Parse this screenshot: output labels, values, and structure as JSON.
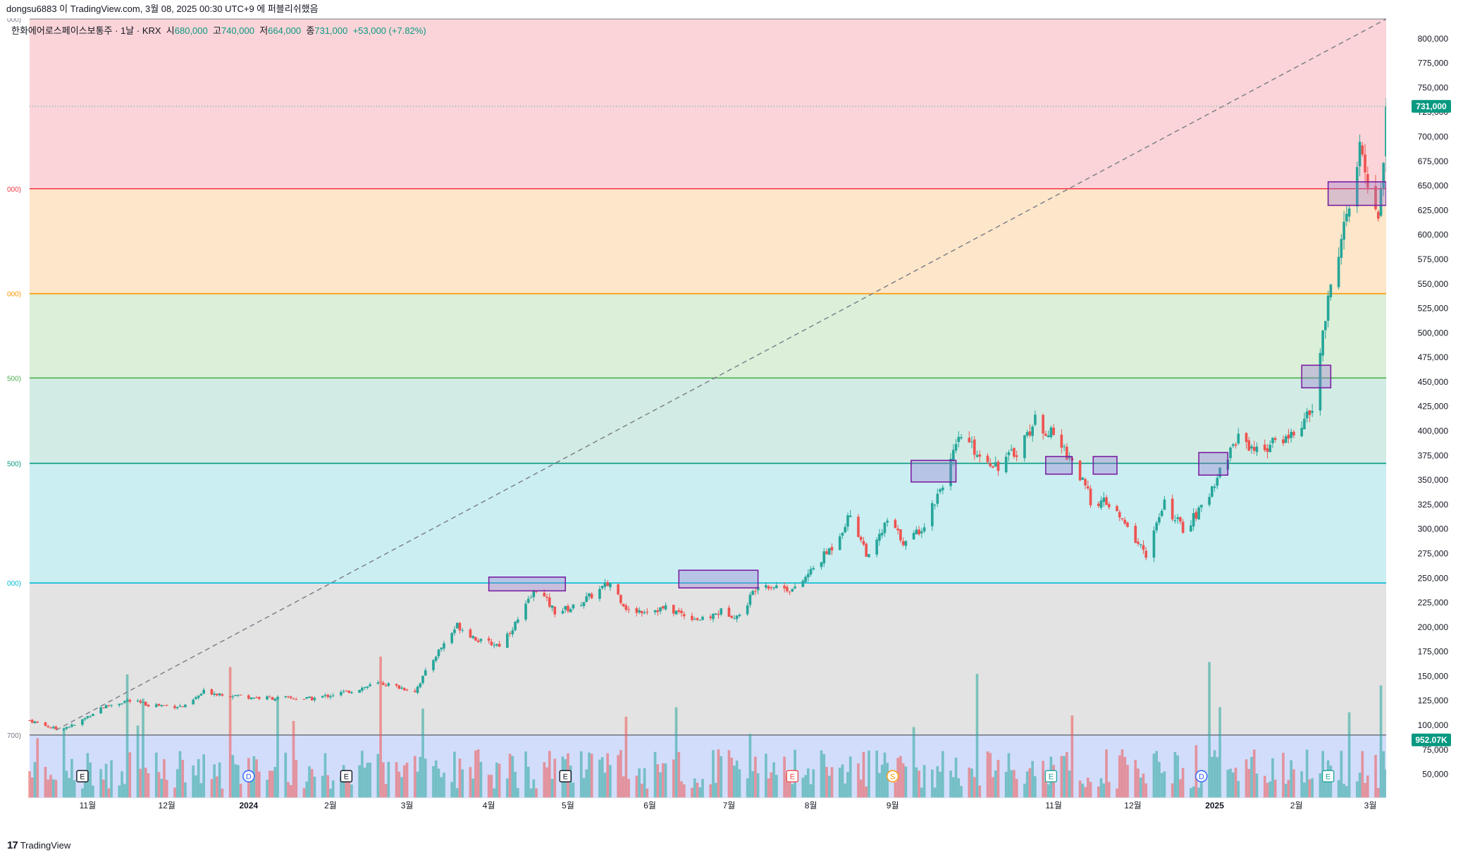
{
  "header": {
    "published_by": "dongsu6883 이 TradingView.com, 3월 08, 2025 00:30 UTC+9 에 퍼블리쉬했음"
  },
  "legend": {
    "symbol": "한화에어로스페이스보통주 · 1날 · KRX",
    "open_label": "시",
    "open_value": "680,000",
    "high_label": "고",
    "high_value": "740,000",
    "low_label": "저",
    "low_value": "664,000",
    "close_label": "종",
    "close_value": "731,000",
    "change": "+53,000 (+7.82%)"
  },
  "footer": {
    "brand": "TradingView"
  },
  "colors": {
    "up": "#26a69a",
    "down": "#ef5350",
    "up_text": "#089981",
    "box_stroke": "#7b1fa2",
    "box_fill": "#9575cd"
  },
  "chart_data": {
    "type": "candlestick",
    "y_axis": {
      "range": [
        26000,
        820000
      ],
      "ticks": [
        "800,000",
        "775,000",
        "750,000",
        "725,000",
        "700,000",
        "675,000",
        "650,000",
        "625,000",
        "600,000",
        "575,000",
        "550,000",
        "525,000",
        "500,000",
        "475,000",
        "450,000",
        "425,000",
        "400,000",
        "375,000",
        "350,000",
        "325,000",
        "300,000",
        "275,000",
        "250,000",
        "225,000",
        "200,000",
        "175,000",
        "150,000",
        "125,000",
        "100,000",
        "75,000",
        "50,000"
      ],
      "tick_values": [
        800000,
        775000,
        750000,
        725000,
        700000,
        675000,
        650000,
        625000,
        600000,
        575000,
        550000,
        525000,
        500000,
        475000,
        450000,
        425000,
        400000,
        375000,
        350000,
        325000,
        300000,
        275000,
        250000,
        225000,
        200000,
        175000,
        150000,
        125000,
        100000,
        75000,
        50000
      ],
      "price_badge": "731,000",
      "price_badge_value": 731000,
      "volume_badge": "952.07K",
      "volume_badge_value": 85000
    },
    "x_axis": {
      "labels": [
        "11월",
        "12월",
        "2024",
        "2월",
        "3월",
        "4월",
        "5월",
        "6월",
        "7월",
        "8월",
        "9월",
        "11월",
        "12월",
        "2025",
        "2월",
        "3월"
      ],
      "label_dates": [
        "2023-11-01",
        "2023-12-01",
        "2024-01-01",
        "2024-02-01",
        "2024-03-01",
        "2024-04-01",
        "2024-05-01",
        "2024-06-01",
        "2024-07-01",
        "2024-08-01",
        "2024-09-01",
        "2024-11-01",
        "2024-12-01",
        "2025-01-01",
        "2025-02-01",
        "2025-03-01"
      ],
      "start_date": "2023-10-10",
      "end_date": "2025-03-07"
    },
    "fib_levels": [
      {
        "label": "000)",
        "price": 820000,
        "color": "#787b86"
      },
      {
        "label": "000)",
        "price": 647000,
        "color": "#f23645"
      },
      {
        "label": "000)",
        "price": 540000,
        "color": "#ff9800"
      },
      {
        "label": "500)",
        "price": 454000,
        "color": "#4caf50"
      },
      {
        "label": "500)",
        "price": 367000,
        "color": "#089981"
      },
      {
        "label": "000)",
        "price": 245000,
        "color": "#00bcd4"
      },
      {
        "label": "700)",
        "price": 90000,
        "color": "#787b86"
      }
    ],
    "zone_fills": [
      "#fad4d8",
      "#fde6c9",
      "#dcefd9",
      "#d2ece5",
      "#cbeef2",
      "#e3e3e3",
      "#d2ddfb"
    ],
    "trendline": {
      "start": [
        "2023-10-20",
        95000
      ],
      "end": [
        "2025-03-07",
        820000
      ]
    },
    "event_markers": [
      {
        "date": "2023-10-30",
        "letter": "E",
        "kind": "earnings"
      },
      {
        "date": "2024-01-01",
        "letter": "D",
        "kind": "dividend"
      },
      {
        "date": "2024-02-07",
        "letter": "E",
        "kind": "earnings"
      },
      {
        "date": "2024-04-30",
        "letter": "E",
        "kind": "earnings"
      },
      {
        "date": "2024-07-25",
        "letter": "E",
        "kind": "earnings-neg"
      },
      {
        "date": "2024-09-01",
        "letter": "S",
        "kind": "split"
      },
      {
        "date": "2024-10-31",
        "letter": "E",
        "kind": "earnings"
      },
      {
        "date": "2024-12-27",
        "letter": "D",
        "kind": "dividend"
      },
      {
        "date": "2025-02-13",
        "letter": "E",
        "kind": "earnings"
      }
    ],
    "boxes": [
      {
        "from": "2024-04-01",
        "to": "2024-04-30",
        "low": 237000,
        "high": 251000
      },
      {
        "from": "2024-06-12",
        "to": "2024-07-12",
        "low": 240000,
        "high": 258000
      },
      {
        "from": "2024-09-08",
        "to": "2024-09-25",
        "low": 348000,
        "high": 370000
      },
      {
        "from": "2024-10-29",
        "to": "2024-11-08",
        "low": 356000,
        "high": 374000
      },
      {
        "from": "2024-11-16",
        "to": "2024-11-25",
        "low": 356000,
        "high": 374000
      },
      {
        "from": "2024-12-26",
        "to": "2025-01-06",
        "low": 355000,
        "high": 378000
      },
      {
        "from": "2025-02-03",
        "to": "2025-02-14",
        "low": 444000,
        "high": 467000
      },
      {
        "from": "2025-02-13",
        "to": "2025-03-07",
        "low": 630000,
        "high": 654000
      }
    ],
    "price_anchors": [
      [
        "2023-10-10",
        105000
      ],
      [
        "2023-10-20",
        96000
      ],
      [
        "2023-10-27",
        100000
      ],
      [
        "2023-11-06",
        118000
      ],
      [
        "2023-11-16",
        125000
      ],
      [
        "2023-11-24",
        121000
      ],
      [
        "2023-12-08",
        119000
      ],
      [
        "2023-12-15",
        134000
      ],
      [
        "2024-01-05",
        128000
      ],
      [
        "2024-01-25",
        127000
      ],
      [
        "2024-02-07",
        134000
      ],
      [
        "2024-02-20",
        143000
      ],
      [
        "2024-03-04",
        135000
      ],
      [
        "2024-03-12",
        172000
      ],
      [
        "2024-03-20",
        202000
      ],
      [
        "2024-03-29",
        185000
      ],
      [
        "2024-04-05",
        182000
      ],
      [
        "2024-04-12",
        207000
      ],
      [
        "2024-04-19",
        240000
      ],
      [
        "2024-04-26",
        216000
      ],
      [
        "2024-05-03",
        220000
      ],
      [
        "2024-05-17",
        245000
      ],
      [
        "2024-05-24",
        216000
      ],
      [
        "2024-06-07",
        219000
      ],
      [
        "2024-06-21",
        207000
      ],
      [
        "2024-06-28",
        216000
      ],
      [
        "2024-07-05",
        211000
      ],
      [
        "2024-07-12",
        245000
      ],
      [
        "2024-07-26",
        238000
      ],
      [
        "2024-08-02",
        260000
      ],
      [
        "2024-08-09",
        282000
      ],
      [
        "2024-08-16",
        315000
      ],
      [
        "2024-08-23",
        270000
      ],
      [
        "2024-08-30",
        308000
      ],
      [
        "2024-09-06",
        285000
      ],
      [
        "2024-09-13",
        305000
      ],
      [
        "2024-09-20",
        348000
      ],
      [
        "2024-09-27",
        395000
      ],
      [
        "2024-10-04",
        375000
      ],
      [
        "2024-10-11",
        365000
      ],
      [
        "2024-10-18",
        380000
      ],
      [
        "2024-10-25",
        410000
      ],
      [
        "2024-11-01",
        395000
      ],
      [
        "2024-11-08",
        370000
      ],
      [
        "2024-11-15",
        330000
      ],
      [
        "2024-11-22",
        325000
      ],
      [
        "2024-11-29",
        300000
      ],
      [
        "2024-12-06",
        275000
      ],
      [
        "2024-12-13",
        325000
      ],
      [
        "2024-12-20",
        300000
      ],
      [
        "2024-12-27",
        320000
      ],
      [
        "2025-01-03",
        360000
      ],
      [
        "2025-01-10",
        395000
      ],
      [
        "2025-01-17",
        380000
      ],
      [
        "2025-01-24",
        388000
      ],
      [
        "2025-01-31",
        398000
      ],
      [
        "2025-02-07",
        420000
      ],
      [
        "2025-02-11",
        500000
      ],
      [
        "2025-02-14",
        545000
      ],
      [
        "2025-02-18",
        600000
      ],
      [
        "2025-02-21",
        625000
      ],
      [
        "2025-02-25",
        685000
      ],
      [
        "2025-02-28",
        655000
      ],
      [
        "2025-03-04",
        620000
      ],
      [
        "2025-03-06",
        678000
      ],
      [
        "2025-03-07",
        731000
      ]
    ]
  }
}
